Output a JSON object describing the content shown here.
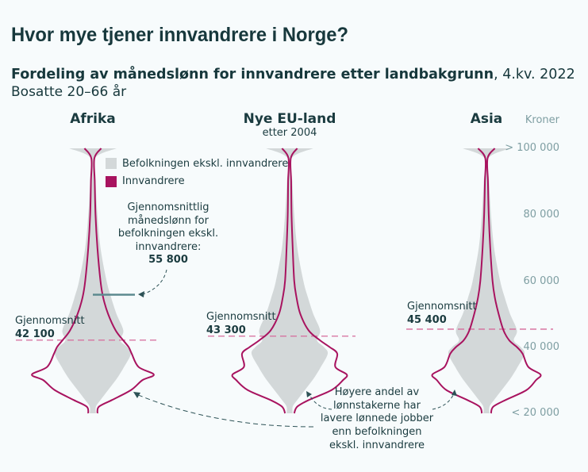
{
  "title": "Hvor mye tjener innvandrere i Norge?",
  "subtitle_bold": "Fordeling av månedslønn for innvandrere etter landbakgrunn",
  "subtitle_rest": ", 4.kv. 2022",
  "subtitle2": "Bosatte 20–66 år",
  "colors": {
    "population": "#d3d8d9",
    "immigrants": "#a8135f",
    "mean_line": "#d66a9a",
    "ref_line": "#5d8a8f",
    "text": "#17383c"
  },
  "chart_data": {
    "type": "violin",
    "ylabel": "Kroner",
    "y_ticks": [
      {
        "value": 100000,
        "label": "> 100 000"
      },
      {
        "value": 80000,
        "label": "80 000"
      },
      {
        "value": 60000,
        "label": "60 000"
      },
      {
        "value": 40000,
        "label": "40 000"
      },
      {
        "value": 20000,
        "label": "< 20 000"
      }
    ],
    "ylim": [
      20000,
      100000
    ],
    "legend": [
      {
        "name": "Befolkningen ekskl. innvandrere",
        "color": "#d3d8d9"
      },
      {
        "name": "Innvandrere",
        "color": "#a8135f"
      }
    ],
    "levels": [
      20000,
      22000,
      24000,
      27000,
      30000,
      31700,
      34000,
      38000,
      40000,
      42000,
      45000,
      50000,
      55000,
      60000,
      70000,
      80000,
      90000,
      97000,
      100000
    ],
    "population_density": [
      0.08,
      0.08,
      0.2,
      0.4,
      0.6,
      0.7,
      0.82,
      1.0,
      0.9,
      0.72,
      0.8,
      0.62,
      0.48,
      0.36,
      0.2,
      0.12,
      0.07,
      0.05,
      0.62
    ],
    "population_mean": 55800,
    "groups": [
      {
        "name": "Afrika",
        "subtitle": "",
        "mean": 42100,
        "mean_label": "Gjennomsnitt",
        "mean_value": "42 100",
        "density": [
          0.12,
          0.16,
          0.5,
          1.0,
          1.3,
          1.6,
          1.2,
          1.02,
          0.94,
          0.8,
          0.6,
          0.4,
          0.27,
          0.2,
          0.12,
          0.07,
          0.05,
          0.04,
          0.22
        ]
      },
      {
        "name": "Nye EU-land",
        "subtitle": "etter 2004",
        "mean": 43300,
        "mean_label": "Gjennomsnitt",
        "mean_value": "43 300",
        "density": [
          0.12,
          0.2,
          0.5,
          1.1,
          1.4,
          1.5,
          1.2,
          1.25,
          1.05,
          0.8,
          0.5,
          0.28,
          0.18,
          0.12,
          0.08,
          0.05,
          0.04,
          0.03,
          0.2
        ]
      },
      {
        "name": "Asia",
        "subtitle": "",
        "mean": 45400,
        "mean_label": "Gjennomsnitt",
        "mean_value": "45 400",
        "density": [
          0.12,
          0.18,
          0.5,
          1.05,
          1.3,
          1.42,
          1.1,
          0.95,
          0.8,
          0.6,
          0.45,
          0.32,
          0.22,
          0.16,
          0.1,
          0.06,
          0.04,
          0.03,
          0.22
        ]
      }
    ]
  },
  "annotations": {
    "pop_mean_text": [
      "Gjennomsnittlig",
      "månedslønn for",
      "befolkningen ekskl.",
      "innvandrere:"
    ],
    "pop_mean_value": "55 800",
    "lower_paid_text": [
      "Høyere andel av",
      "lønnstakerne har",
      "lavere lønnede jobber",
      "enn befolkningen",
      "ekskl. innvandrere"
    ]
  }
}
